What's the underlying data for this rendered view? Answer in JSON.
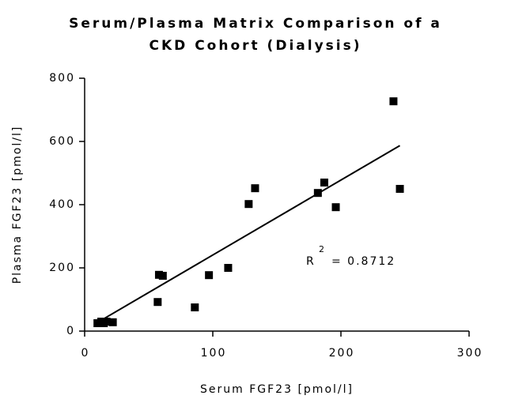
{
  "chart_data": {
    "type": "scatter",
    "title": [
      "Serum/Plasma Matrix Comparison of a",
      "CKD Cohort (Dialysis)"
    ],
    "x_label": "Serum FGF23 [pmol/l]",
    "y_label": "Plasma FGF23 [pmol/l]",
    "series": [
      {
        "color": "#000000",
        "x": [
          10,
          13,
          15,
          17,
          22,
          57,
          58,
          61,
          86,
          97,
          112,
          128,
          133,
          182,
          187,
          196,
          241,
          246
        ],
        "values": [
          25,
          30,
          25,
          30,
          28,
          92,
          178,
          175,
          75,
          177,
          200,
          402,
          452,
          437,
          470,
          392,
          727,
          450
        ]
      }
    ],
    "fit_line": {
      "x": [
        12,
        246
      ],
      "y": [
        32,
        587
      ],
      "color": "#000000"
    },
    "annotation": {
      "base": "R",
      "sup": "2",
      "text": "= 0.8712"
    },
    "xlim": [
      0,
      300
    ],
    "xticks": [
      0,
      100,
      200,
      300
    ],
    "ylim": [
      0,
      800
    ],
    "yticks": [
      0,
      200,
      400,
      600,
      800
    ],
    "grid": false
  }
}
